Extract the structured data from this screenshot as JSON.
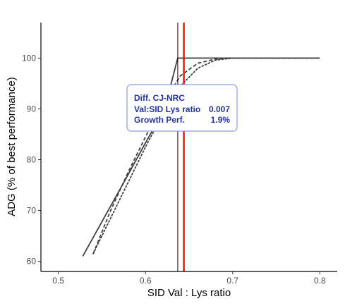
{
  "chart_data": {
    "type": "line",
    "title": "",
    "xlabel": "SID Val : Lys ratio",
    "ylabel": "ADG (% of best performance)",
    "xlim": [
      0.48,
      0.82
    ],
    "ylim": [
      58,
      107
    ],
    "x_ticks": [
      0.5,
      0.6,
      0.7,
      0.8
    ],
    "x_tick_labels": [
      "0.5",
      "0.6",
      "0.7",
      "0.8"
    ],
    "y_ticks": [
      60,
      70,
      80,
      90,
      100
    ],
    "y_tick_labels": [
      "60",
      "70",
      "80",
      "90",
      "100"
    ],
    "grid": false,
    "series": [
      {
        "style": "solid",
        "color": "#404040",
        "x": [
          0.528,
          0.55,
          0.575,
          0.6,
          0.622,
          0.637,
          0.65,
          0.7,
          0.75,
          0.8
        ],
        "y": [
          61,
          67.8,
          75.5,
          83.3,
          90.0,
          100,
          100,
          100,
          100,
          100
        ]
      },
      {
        "style": "dashed",
        "color": "#404040",
        "x": [
          0.54,
          0.56,
          0.58,
          0.6,
          0.62,
          0.64,
          0.66,
          0.68,
          0.7,
          0.72,
          0.75,
          0.8
        ],
        "y": [
          61.5,
          70.0,
          77.5,
          84.5,
          91.0,
          96.5,
          99.0,
          99.8,
          100,
          100,
          100,
          100
        ]
      },
      {
        "style": "dotted",
        "color": "#404040",
        "x": [
          0.54,
          0.56,
          0.58,
          0.6,
          0.62,
          0.64,
          0.66,
          0.68,
          0.7,
          0.72,
          0.75,
          0.8
        ],
        "y": [
          61.5,
          68.5,
          75.5,
          82.5,
          89.0,
          94.5,
          98.0,
          99.6,
          100,
          100,
          100,
          100
        ]
      }
    ],
    "vlines": [
      {
        "x": 0.637,
        "color": "#000000",
        "width": 1
      },
      {
        "x": 0.644,
        "color": "#e41a1c",
        "width": 2.5
      }
    ],
    "annotation": {
      "lines": [
        "Diff. CJ-NRC",
        "Val:SID Lys ratio",
        "Growth Perf."
      ],
      "values": [
        "",
        "0.007",
        "1.9%"
      ],
      "box_border": "#8a9ae6",
      "text_color": "#2233aa"
    }
  }
}
